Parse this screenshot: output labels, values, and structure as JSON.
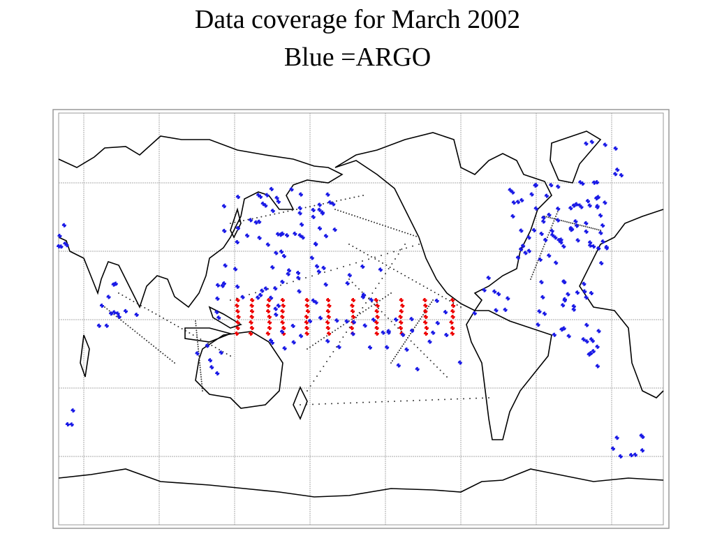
{
  "header": {
    "title": "Data coverage for March 2002",
    "subtitle": "Blue =ARGO"
  }
}
